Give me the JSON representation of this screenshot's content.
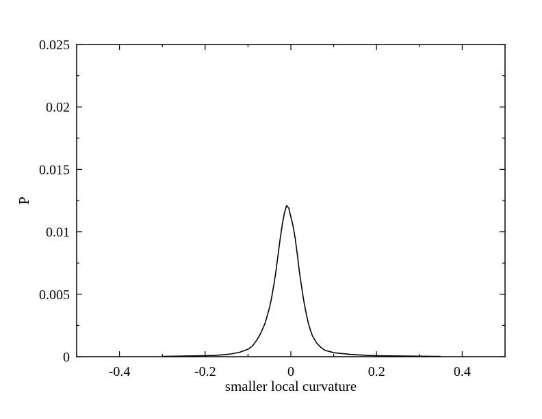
{
  "chart_data": {
    "type": "line",
    "title": "",
    "xlabel": "smaller local curvature",
    "ylabel": "P",
    "xlim": [
      -0.5,
      0.5
    ],
    "ylim": [
      0,
      0.025
    ],
    "x_major_ticks": [
      -0.4,
      -0.2,
      0,
      0.2,
      0.4
    ],
    "x_tick_labels": [
      "-0.4",
      "-0.2",
      "0",
      "0.2",
      "0.4"
    ],
    "x_minor_ticks": [
      -0.5,
      -0.3,
      -0.1,
      0.1,
      0.3,
      0.5
    ],
    "y_major_ticks": [
      0,
      0.005,
      0.01,
      0.015,
      0.02,
      0.025
    ],
    "y_tick_labels": [
      "0",
      "0.005",
      "0.01",
      "0.015",
      "0.02",
      "0.025"
    ],
    "y_minor_ticks": [
      0.0025,
      0.0075,
      0.0125,
      0.0175,
      0.0225
    ],
    "grid": false,
    "legend": "none",
    "line_color": "#000000",
    "series": [
      {
        "x": [
          -0.3,
          -0.25,
          -0.2,
          -0.18,
          -0.16,
          -0.14,
          -0.12,
          -0.1,
          -0.09,
          -0.08,
          -0.07,
          -0.06,
          -0.05,
          -0.045,
          -0.04,
          -0.035,
          -0.03,
          -0.025,
          -0.02,
          -0.015,
          -0.01,
          -0.005,
          0,
          0.005,
          0.01,
          0.015,
          0.02,
          0.025,
          0.03,
          0.035,
          0.04,
          0.045,
          0.05,
          0.06,
          0.07,
          0.08,
          0.09,
          0.1,
          0.12,
          0.14,
          0.16,
          0.18,
          0.2,
          0.25,
          0.3,
          0.35
        ],
        "y": [
          3e-05,
          5e-05,
          8e-05,
          0.0001,
          0.00015,
          0.00022,
          0.00035,
          0.0006,
          0.00085,
          0.0013,
          0.0019,
          0.0027,
          0.0039,
          0.0047,
          0.0057,
          0.0068,
          0.0081,
          0.0094,
          0.0106,
          0.0115,
          0.0121,
          0.0119,
          0.0112,
          0.0105,
          0.0095,
          0.0082,
          0.0068,
          0.0056,
          0.0045,
          0.0036,
          0.0028,
          0.0022,
          0.0017,
          0.0011,
          0.00075,
          0.0005,
          0.00042,
          0.00032,
          0.00025,
          0.00018,
          0.00014,
          0.0001,
          8e-05,
          6e-05,
          4e-05,
          2e-05
        ]
      }
    ]
  }
}
